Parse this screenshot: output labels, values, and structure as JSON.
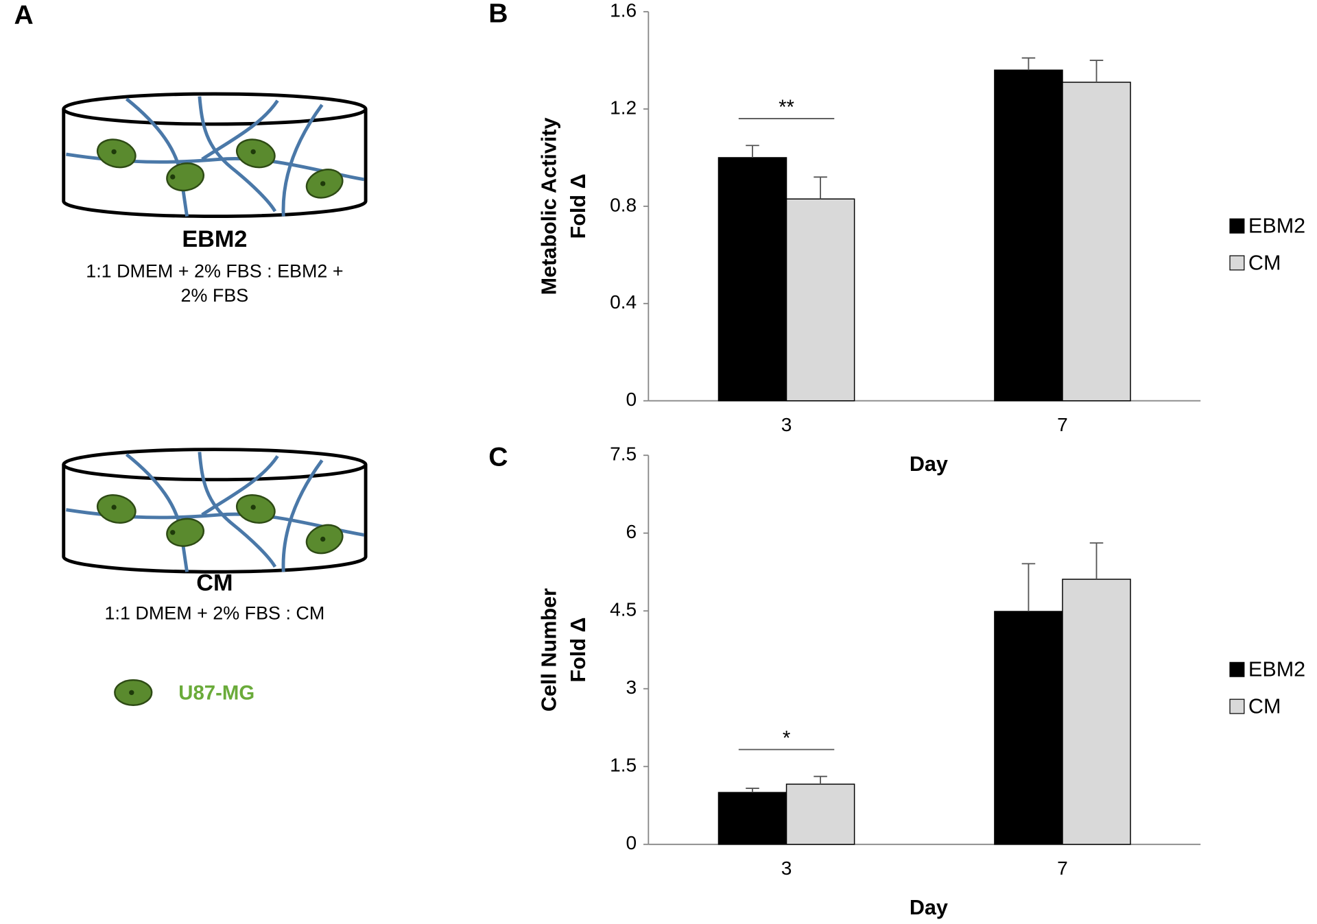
{
  "panel_a": {
    "label": "A",
    "dishes": [
      {
        "name": "EBM2",
        "medium_lines": [
          "1:1 DMEM + 2% FBS : EBM2 +",
          "2% FBS"
        ]
      },
      {
        "name": "CM",
        "medium_lines": [
          "1:1 DMEM + 2% FBS : CM"
        ]
      }
    ],
    "cell_legend": "U87-MG"
  },
  "chart_data": [
    {
      "type": "bar",
      "panel": "B",
      "categories": [
        "3",
        "7"
      ],
      "xlabel": "Day",
      "ylabel": [
        "Metabolic Activity",
        "Fold Δ"
      ],
      "series": [
        {
          "name": "EBM2",
          "color": "#000000",
          "values": [
            1.0,
            1.36
          ],
          "errors": [
            0.05,
            0.05
          ]
        },
        {
          "name": "CM",
          "color": "#d9d9d9",
          "values": [
            0.83,
            1.31
          ],
          "errors": [
            0.09,
            0.09
          ]
        }
      ],
      "ylim": [
        0,
        1.6
      ],
      "yticks": [
        0,
        0.4,
        0.8,
        1.2,
        1.6
      ],
      "grid": false,
      "significance": "**"
    },
    {
      "type": "bar",
      "panel": "C",
      "categories": [
        "3",
        "7"
      ],
      "xlabel": "Day",
      "ylabel": [
        "Cell Number",
        "Fold Δ"
      ],
      "series": [
        {
          "name": "EBM2",
          "color": "#000000",
          "values": [
            1.0,
            4.49
          ],
          "errors": [
            0.08,
            0.92
          ]
        },
        {
          "name": "CM",
          "color": "#d9d9d9",
          "values": [
            1.16,
            5.11
          ],
          "errors": [
            0.15,
            0.7
          ]
        }
      ],
      "ylim": [
        0,
        7.5
      ],
      "yticks": [
        0,
        1.5,
        3,
        4.5,
        6,
        7.5
      ],
      "grid": false,
      "significance": "*"
    }
  ]
}
